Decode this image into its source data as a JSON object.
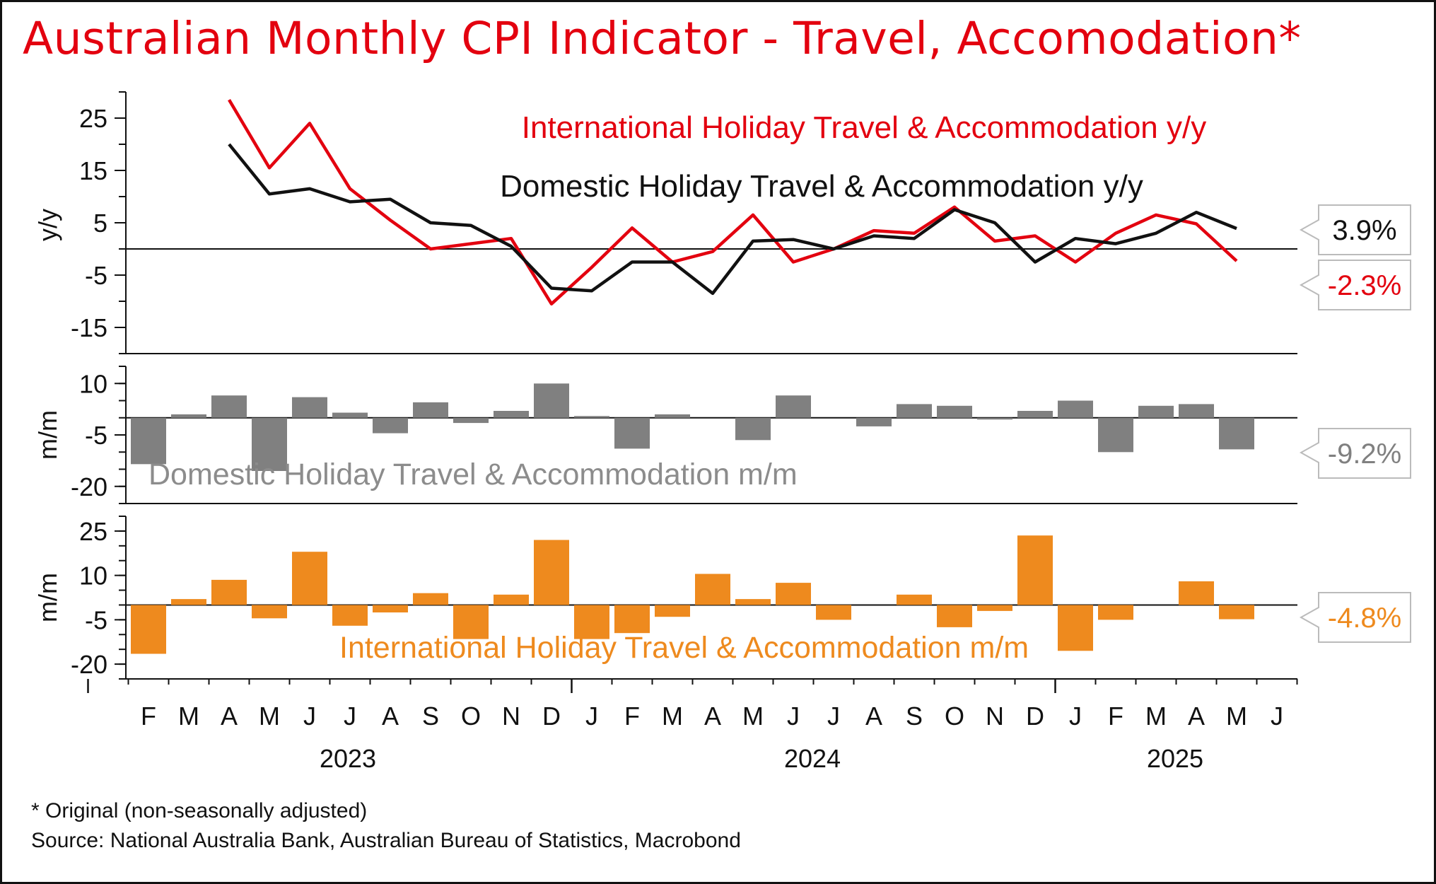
{
  "title": "Australian Monthly CPI Indicator - Travel, Accomodation*",
  "footnote": "* Original (non-seasonally adjusted)",
  "source": "Source: National Australia Bank, Australian Bureau of Statistics, Macrobond",
  "chart_data": [
    {
      "type": "line",
      "ylabel": "y/y",
      "ylim": [
        -20,
        30
      ],
      "yticks": [
        "25",
        "15",
        "5",
        "-5",
        "-15"
      ],
      "grid": false,
      "categories": [
        "F",
        "M",
        "A",
        "M",
        "J",
        "J",
        "A",
        "S",
        "O",
        "N",
        "D",
        "J",
        "F",
        "M",
        "A",
        "M",
        "J",
        "J",
        "A",
        "S",
        "O",
        "N",
        "D",
        "J",
        "F",
        "M",
        "A",
        "M",
        "J"
      ],
      "years": [
        "2023",
        "2024",
        "2025"
      ],
      "series": [
        {
          "name": "International Holiday Travel & Accommodation y/y",
          "color": "#e3000f",
          "end_label": "-2.3%",
          "values": [
            null,
            null,
            28.5,
            15.5,
            24.0,
            11.5,
            5.5,
            0.0,
            1.0,
            2.0,
            -10.5,
            -3.5,
            4.0,
            -2.5,
            -0.5,
            6.5,
            -2.5,
            0.0,
            3.5,
            3.0,
            8.0,
            1.5,
            2.5,
            -2.5,
            3.0,
            6.5,
            4.8,
            -2.3,
            null
          ]
        },
        {
          "name": "Domestic Holiday Travel & Accommodation y/y",
          "color": "#111111",
          "end_label": "3.9%",
          "values": [
            null,
            null,
            20.0,
            10.5,
            11.5,
            9.0,
            9.5,
            5.0,
            4.5,
            0.5,
            -7.5,
            -8.0,
            -2.5,
            -2.5,
            -8.5,
            1.5,
            1.8,
            0.0,
            2.5,
            2.0,
            7.5,
            5.0,
            -2.5,
            2.0,
            1.0,
            3.0,
            7.0,
            3.9,
            null
          ]
        }
      ]
    },
    {
      "type": "bar",
      "ylabel": "m/m",
      "ylim": [
        -25,
        15
      ],
      "yticks": [
        "10",
        "-5",
        "-20"
      ],
      "series": [
        {
          "name": "Domestic Holiday Travel & Accommodation m/m",
          "color": "#808080",
          "end_label": "-9.2%",
          "values": [
            -13.5,
            1.0,
            6.5,
            -15.5,
            6.0,
            1.5,
            -4.5,
            4.5,
            -1.5,
            2.0,
            10.0,
            0.5,
            -9.0,
            1.0,
            null,
            -6.5,
            6.5,
            null,
            -2.5,
            4.0,
            3.5,
            -0.5,
            2.0,
            5.0,
            -10.0,
            3.5,
            4.0,
            -9.2,
            null
          ]
        }
      ]
    },
    {
      "type": "bar",
      "ylabel": "m/m",
      "ylim": [
        -25,
        30
      ],
      "yticks": [
        "25",
        "10",
        "-5",
        "-20"
      ],
      "series": [
        {
          "name": "International Holiday Travel & Accommodation m/m",
          "color": "#ee8a1e",
          "end_label": "-4.8%",
          "values": [
            -16.5,
            2.0,
            8.5,
            -4.5,
            18.0,
            -7.0,
            -2.5,
            4.0,
            -11.5,
            3.5,
            22.0,
            -11.5,
            -9.5,
            -4.0,
            10.5,
            2.0,
            7.5,
            -5.0,
            null,
            3.5,
            -7.5,
            -2.0,
            23.5,
            -15.5,
            -5.0,
            null,
            8.0,
            -4.8,
            null
          ]
        }
      ]
    }
  ]
}
